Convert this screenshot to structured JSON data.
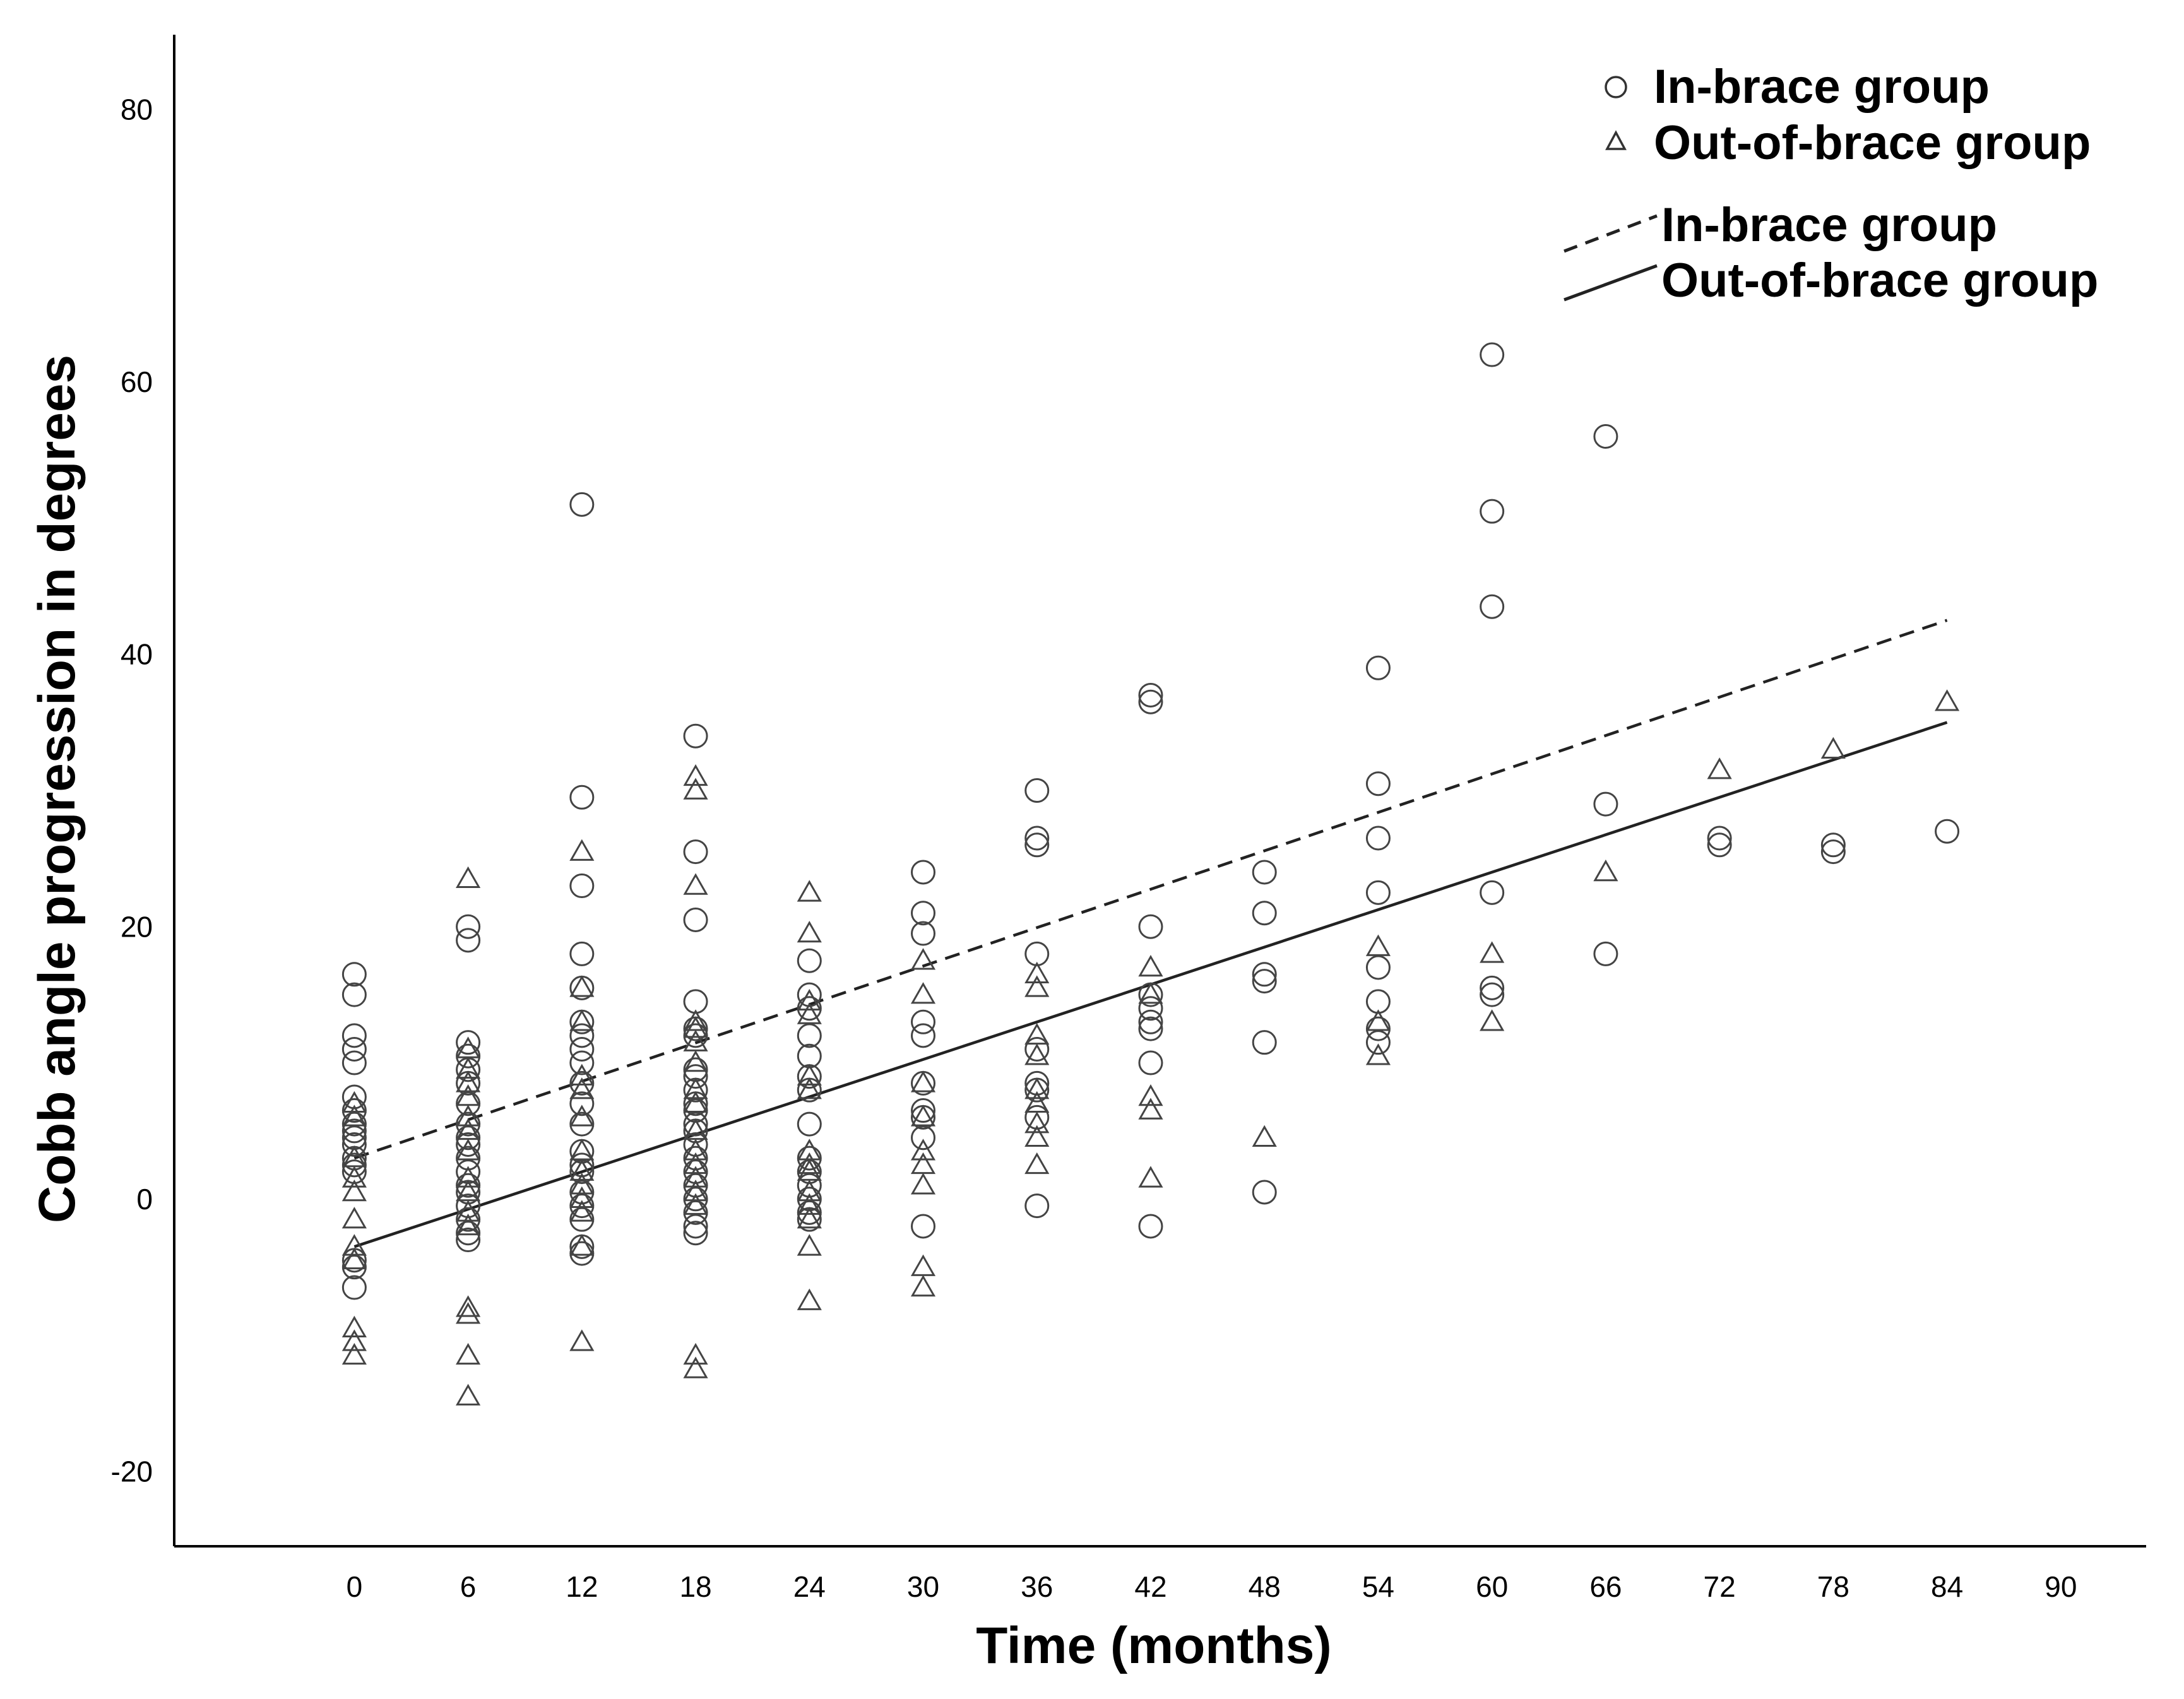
{
  "chart_data": {
    "type": "scatter",
    "title": "",
    "xlabel": "Time (months)",
    "ylabel": "Cobb angle progression in degrees",
    "xlim": [
      -9.5,
      94.5
    ],
    "ylim": [
      -25.5,
      85.5
    ],
    "x_ticks": [
      0,
      6,
      12,
      18,
      24,
      30,
      36,
      42,
      48,
      54,
      60,
      66,
      72,
      78,
      84,
      90
    ],
    "y_ticks": [
      -20,
      0,
      20,
      40,
      60,
      80
    ],
    "grid": false,
    "legend": {
      "position": "top-right",
      "markers": [
        {
          "label": "In-brace group",
          "marker": "circle"
        },
        {
          "label": "Out-of-brace group",
          "marker": "triangle"
        }
      ],
      "lines": [
        {
          "label": "In-brace group",
          "style": "dashed"
        },
        {
          "label": "Out-of-brace group",
          "style": "solid"
        }
      ]
    },
    "series": [
      {
        "name": "In-brace group",
        "marker": "circle",
        "points": [
          [
            0,
            16.5
          ],
          [
            0,
            15
          ],
          [
            0,
            12
          ],
          [
            0,
            11
          ],
          [
            0,
            10
          ],
          [
            0,
            7.5
          ],
          [
            0,
            6.5
          ],
          [
            0,
            5.5
          ],
          [
            0,
            5
          ],
          [
            0,
            4.5
          ],
          [
            0,
            4
          ],
          [
            0,
            3
          ],
          [
            0,
            2.5
          ],
          [
            0,
            2
          ],
          [
            0,
            -4.5
          ],
          [
            0,
            -5
          ],
          [
            0,
            -6.5
          ],
          [
            6,
            20
          ],
          [
            6,
            19
          ],
          [
            6,
            11.5
          ],
          [
            6,
            10.5
          ],
          [
            6,
            9.5
          ],
          [
            6,
            8.5
          ],
          [
            6,
            7
          ],
          [
            6,
            5.5
          ],
          [
            6,
            4.5
          ],
          [
            6,
            4
          ],
          [
            6,
            3
          ],
          [
            6,
            2
          ],
          [
            6,
            1
          ],
          [
            6,
            0.5
          ],
          [
            6,
            -0.5
          ],
          [
            6,
            -1.5
          ],
          [
            6,
            -2.5
          ],
          [
            6,
            -3
          ],
          [
            12,
            51
          ],
          [
            12,
            29.5
          ],
          [
            12,
            23
          ],
          [
            12,
            18
          ],
          [
            12,
            15.5
          ],
          [
            12,
            13
          ],
          [
            12,
            12
          ],
          [
            12,
            11
          ],
          [
            12,
            10
          ],
          [
            12,
            8.5
          ],
          [
            12,
            7
          ],
          [
            12,
            5.5
          ],
          [
            12,
            3.5
          ],
          [
            12,
            2.5
          ],
          [
            12,
            2
          ],
          [
            12,
            0.5
          ],
          [
            12,
            -0.5
          ],
          [
            12,
            -1.5
          ],
          [
            12,
            -3.5
          ],
          [
            12,
            -4
          ],
          [
            18,
            34
          ],
          [
            18,
            25.5
          ],
          [
            18,
            20.5
          ],
          [
            18,
            14.5
          ],
          [
            18,
            12.5
          ],
          [
            18,
            12
          ],
          [
            18,
            9.5
          ],
          [
            18,
            9
          ],
          [
            18,
            8
          ],
          [
            18,
            7
          ],
          [
            18,
            6.5
          ],
          [
            18,
            5.5
          ],
          [
            18,
            5
          ],
          [
            18,
            4
          ],
          [
            18,
            3
          ],
          [
            18,
            2
          ],
          [
            18,
            1
          ],
          [
            18,
            0
          ],
          [
            18,
            -1
          ],
          [
            18,
            -2
          ],
          [
            18,
            -2.5
          ],
          [
            24,
            17.5
          ],
          [
            24,
            15
          ],
          [
            24,
            14
          ],
          [
            24,
            12
          ],
          [
            24,
            10.5
          ],
          [
            24,
            9
          ],
          [
            24,
            8
          ],
          [
            24,
            5.5
          ],
          [
            24,
            3
          ],
          [
            24,
            2
          ],
          [
            24,
            1
          ],
          [
            24,
            0
          ],
          [
            24,
            -1
          ],
          [
            24,
            -1.5
          ],
          [
            30,
            24
          ],
          [
            30,
            21
          ],
          [
            30,
            19.5
          ],
          [
            30,
            13
          ],
          [
            30,
            12
          ],
          [
            30,
            8.5
          ],
          [
            30,
            6.5
          ],
          [
            30,
            6
          ],
          [
            30,
            4.5
          ],
          [
            30,
            -2
          ],
          [
            36,
            30
          ],
          [
            36,
            26.5
          ],
          [
            36,
            26
          ],
          [
            36,
            18
          ],
          [
            36,
            11
          ],
          [
            36,
            8.5
          ],
          [
            36,
            8
          ],
          [
            36,
            6
          ],
          [
            36,
            -0.5
          ],
          [
            42,
            37
          ],
          [
            42,
            36.5
          ],
          [
            42,
            20
          ],
          [
            42,
            15
          ],
          [
            42,
            14
          ],
          [
            42,
            13
          ],
          [
            42,
            12.5
          ],
          [
            42,
            10
          ],
          [
            42,
            -2
          ],
          [
            48,
            24
          ],
          [
            48,
            21
          ],
          [
            48,
            16.5
          ],
          [
            48,
            16
          ],
          [
            48,
            11.5
          ],
          [
            48,
            0.5
          ],
          [
            54,
            39
          ],
          [
            54,
            30.5
          ],
          [
            54,
            26.5
          ],
          [
            54,
            22.5
          ],
          [
            54,
            17
          ],
          [
            54,
            14.5
          ],
          [
            54,
            12.5
          ],
          [
            54,
            11.5
          ],
          [
            60,
            62
          ],
          [
            60,
            50.5
          ],
          [
            60,
            43.5
          ],
          [
            60,
            22.5
          ],
          [
            60,
            15.5
          ],
          [
            60,
            15
          ],
          [
            66,
            56
          ],
          [
            66,
            29
          ],
          [
            66,
            18
          ],
          [
            72,
            26.5
          ],
          [
            72,
            26
          ],
          [
            78,
            26
          ],
          [
            78,
            25.5
          ],
          [
            84,
            27
          ]
        ]
      },
      {
        "name": "Out-of-brace group",
        "marker": "triangle",
        "points": [
          [
            0,
            7
          ],
          [
            0,
            6
          ],
          [
            0,
            3
          ],
          [
            0,
            1.5
          ],
          [
            0,
            0.5
          ],
          [
            0,
            -1.5
          ],
          [
            0,
            -3.5
          ],
          [
            0,
            -4.5
          ],
          [
            0,
            -9.5
          ],
          [
            0,
            -10.5
          ],
          [
            0,
            -11.5
          ],
          [
            6,
            23.5
          ],
          [
            6,
            11
          ],
          [
            6,
            9.5
          ],
          [
            6,
            8.5
          ],
          [
            6,
            7.5
          ],
          [
            6,
            6
          ],
          [
            6,
            5
          ],
          [
            6,
            3.5
          ],
          [
            6,
            1.5
          ],
          [
            6,
            0.5
          ],
          [
            6,
            -1
          ],
          [
            6,
            -2
          ],
          [
            6,
            -8
          ],
          [
            6,
            -8.5
          ],
          [
            6,
            -11.5
          ],
          [
            6,
            -14.5
          ],
          [
            12,
            25.5
          ],
          [
            12,
            15.5
          ],
          [
            12,
            13
          ],
          [
            12,
            9
          ],
          [
            12,
            8
          ],
          [
            12,
            6
          ],
          [
            12,
            3.5
          ],
          [
            12,
            2
          ],
          [
            12,
            1
          ],
          [
            12,
            0
          ],
          [
            12,
            -1
          ],
          [
            12,
            -3.5
          ],
          [
            12,
            -10.5
          ],
          [
            18,
            31
          ],
          [
            18,
            30
          ],
          [
            18,
            23
          ],
          [
            18,
            13
          ],
          [
            18,
            12.5
          ],
          [
            18,
            11.5
          ],
          [
            18,
            10
          ],
          [
            18,
            8
          ],
          [
            18,
            7
          ],
          [
            18,
            5
          ],
          [
            18,
            3.5
          ],
          [
            18,
            2.5
          ],
          [
            18,
            1.5
          ],
          [
            18,
            0.5
          ],
          [
            18,
            -0.5
          ],
          [
            18,
            -11.5
          ],
          [
            18,
            -12.5
          ],
          [
            24,
            22.5
          ],
          [
            24,
            19.5
          ],
          [
            24,
            14.5
          ],
          [
            24,
            13.5
          ],
          [
            24,
            9
          ],
          [
            24,
            8
          ],
          [
            24,
            3.5
          ],
          [
            24,
            2.5
          ],
          [
            24,
            2
          ],
          [
            24,
            0.5
          ],
          [
            24,
            -0.5
          ],
          [
            24,
            -1.5
          ],
          [
            24,
            -3.5
          ],
          [
            24,
            -7.5
          ],
          [
            30,
            17.5
          ],
          [
            30,
            15
          ],
          [
            30,
            8.5
          ],
          [
            30,
            6
          ],
          [
            30,
            3.5
          ],
          [
            30,
            2.5
          ],
          [
            30,
            1
          ],
          [
            30,
            -5
          ],
          [
            30,
            -6.5
          ],
          [
            36,
            16.5
          ],
          [
            36,
            15.5
          ],
          [
            36,
            12
          ],
          [
            36,
            10.5
          ],
          [
            36,
            8
          ],
          [
            36,
            7
          ],
          [
            36,
            5.5
          ],
          [
            36,
            4.5
          ],
          [
            36,
            2.5
          ],
          [
            42,
            17
          ],
          [
            42,
            15
          ],
          [
            42,
            7.5
          ],
          [
            42,
            6.5
          ],
          [
            42,
            1.5
          ],
          [
            48,
            4.5
          ],
          [
            54,
            18.5
          ],
          [
            54,
            13
          ],
          [
            54,
            10.5
          ],
          [
            60,
            18
          ],
          [
            60,
            13
          ],
          [
            66,
            24
          ],
          [
            72,
            31.5
          ],
          [
            78,
            33
          ],
          [
            84,
            36.5
          ]
        ]
      }
    ],
    "fit_lines": [
      {
        "name": "In-brace group",
        "style": "dashed",
        "x": [
          0,
          84
        ],
        "y": [
          3,
          42.5
        ]
      },
      {
        "name": "Out-of-brace group",
        "style": "solid",
        "x": [
          0,
          84
        ],
        "y": [
          -3.5,
          35
        ]
      }
    ]
  }
}
